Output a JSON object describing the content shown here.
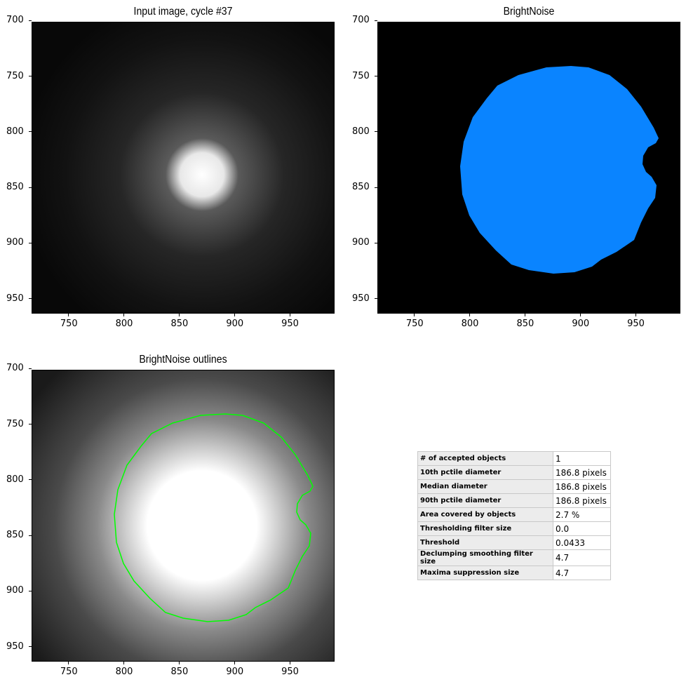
{
  "panels": {
    "input": {
      "title": "Input image, cycle #37"
    },
    "objects": {
      "title": "BrightNoise"
    },
    "outlines": {
      "title": "BrightNoise outlines"
    }
  },
  "axes": {
    "x_ticks": [
      "750",
      "800",
      "850",
      "900",
      "950"
    ],
    "y_ticks": [
      "700",
      "750",
      "800",
      "850",
      "900",
      "950"
    ]
  },
  "colors": {
    "object_fill": "#0a84ff",
    "outline": "#00ff00",
    "background": "#000000"
  },
  "stats": [
    {
      "label": "# of accepted objects",
      "value": "1"
    },
    {
      "label": "10th pctile diameter",
      "value": "186.8 pixels"
    },
    {
      "label": "Median diameter",
      "value": "186.8 pixels"
    },
    {
      "label": "90th pctile diameter",
      "value": "186.8 pixels"
    },
    {
      "label": "Area covered by objects",
      "value": "2.7 %"
    },
    {
      "label": "Thresholding filter size",
      "value": "0.0"
    },
    {
      "label": "Threshold",
      "value": "0.0433"
    },
    {
      "label": "Declumping smoothing filter size",
      "value": "4.7"
    },
    {
      "label": "Maxima suppression size",
      "value": "4.7"
    }
  ]
}
